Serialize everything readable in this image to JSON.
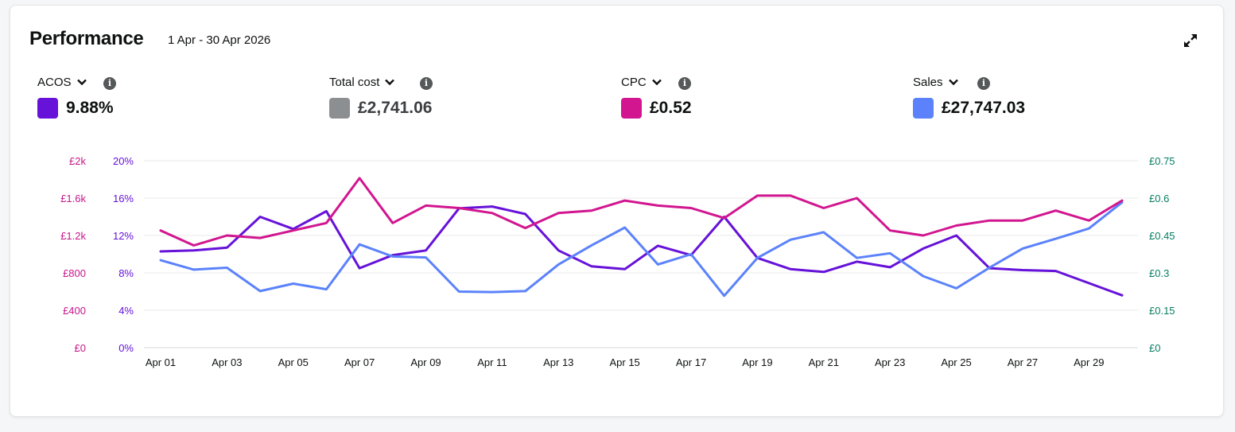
{
  "header": {
    "title": "Performance",
    "date_range": "1 Apr - 30 Apr 2026"
  },
  "metrics": [
    {
      "label": "ACOS",
      "value": "9.88%",
      "color": "#6612d9",
      "value_style": "dark"
    },
    {
      "label": "Total cost",
      "value": "£2,741.06",
      "color": "#8c8f92",
      "value_style": "grey"
    },
    {
      "label": "CPC",
      "value": "£0.52",
      "color": "#d1168f",
      "value_style": "dark"
    },
    {
      "label": "Sales",
      "value": "£27,747.03",
      "color": "#5b82fb",
      "value_style": "dark"
    }
  ],
  "chart_data": {
    "type": "line",
    "x": [
      "Apr 01",
      "Apr 02",
      "Apr 03",
      "Apr 04",
      "Apr 05",
      "Apr 06",
      "Apr 07",
      "Apr 08",
      "Apr 09",
      "Apr 10",
      "Apr 11",
      "Apr 12",
      "Apr 13",
      "Apr 14",
      "Apr 15",
      "Apr 16",
      "Apr 17",
      "Apr 18",
      "Apr 19",
      "Apr 20",
      "Apr 21",
      "Apr 22",
      "Apr 23",
      "Apr 24",
      "Apr 25",
      "Apr 26",
      "Apr 27",
      "Apr 28",
      "Apr 29",
      "Apr 30"
    ],
    "x_tick_labels": [
      "Apr 01",
      "Apr 03",
      "Apr 05",
      "Apr 07",
      "Apr 09",
      "Apr 11",
      "Apr 13",
      "Apr 15",
      "Apr 17",
      "Apr 19",
      "Apr 21",
      "Apr 23",
      "Apr 25",
      "Apr 27",
      "Apr 29"
    ],
    "axes": {
      "left_outer": {
        "ticks": [
          "£0",
          "£400",
          "£800",
          "£1.2k",
          "£1.6k",
          "£2k"
        ],
        "range": [
          0,
          2000
        ],
        "color": "#c7168b"
      },
      "left_inner": {
        "ticks": [
          "0%",
          "4%",
          "8%",
          "12%",
          "16%",
          "20%"
        ],
        "range": [
          0,
          20
        ],
        "color": "#6612d9"
      },
      "right": {
        "ticks": [
          "£0",
          "£0.15",
          "£0.3",
          "£0.45",
          "£0.6",
          "£0.75"
        ],
        "range": [
          0,
          0.75
        ],
        "color": "#067d62"
      }
    },
    "grid": true,
    "series": [
      {
        "name": "ACOS",
        "axis": "left_inner",
        "color": "#6612d9",
        "values": [
          10.3,
          10.4,
          10.7,
          14.0,
          12.7,
          14.6,
          8.5,
          9.9,
          10.4,
          14.9,
          15.1,
          14.3,
          10.4,
          8.7,
          8.4,
          10.9,
          9.9,
          14.0,
          9.6,
          8.4,
          8.1,
          9.2,
          8.6,
          10.6,
          12.0,
          8.5,
          8.3,
          8.2,
          6.9,
          5.6
        ]
      },
      {
        "name": "Sales",
        "axis": "left_outer",
        "color": "#5b82fb",
        "values": [
          935,
          835,
          855,
          605,
          685,
          625,
          1105,
          975,
          965,
          600,
          595,
          605,
          890,
          1095,
          1285,
          890,
          1000,
          555,
          960,
          1155,
          1235,
          960,
          1010,
          765,
          635,
          855,
          1060,
          1165,
          1275,
          1555
        ]
      },
      {
        "name": "CPC",
        "axis": "right",
        "color": "#d1168f",
        "values": [
          0.47,
          0.41,
          0.45,
          0.44,
          0.47,
          0.5,
          0.68,
          0.5,
          0.57,
          0.56,
          0.54,
          0.48,
          0.54,
          0.55,
          0.59,
          0.57,
          0.56,
          0.52,
          0.61,
          0.61,
          0.56,
          0.6,
          0.47,
          0.45,
          0.49,
          0.51,
          0.51,
          0.55,
          0.51,
          0.59
        ]
      }
    ]
  }
}
